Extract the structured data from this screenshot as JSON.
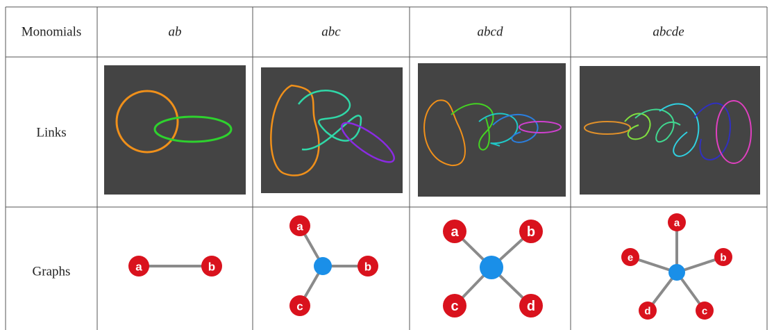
{
  "table": {
    "header": [
      "Monomials",
      "ab",
      "abc",
      "abcd",
      "abcde"
    ],
    "row_labels": [
      "Links",
      "Graphs"
    ],
    "graphs": [
      [
        "a",
        "b"
      ],
      [
        "a",
        "b",
        "c"
      ],
      [
        "a",
        "b",
        "c",
        "d"
      ],
      [
        "a",
        "b",
        "c",
        "d",
        "e"
      ]
    ]
  }
}
